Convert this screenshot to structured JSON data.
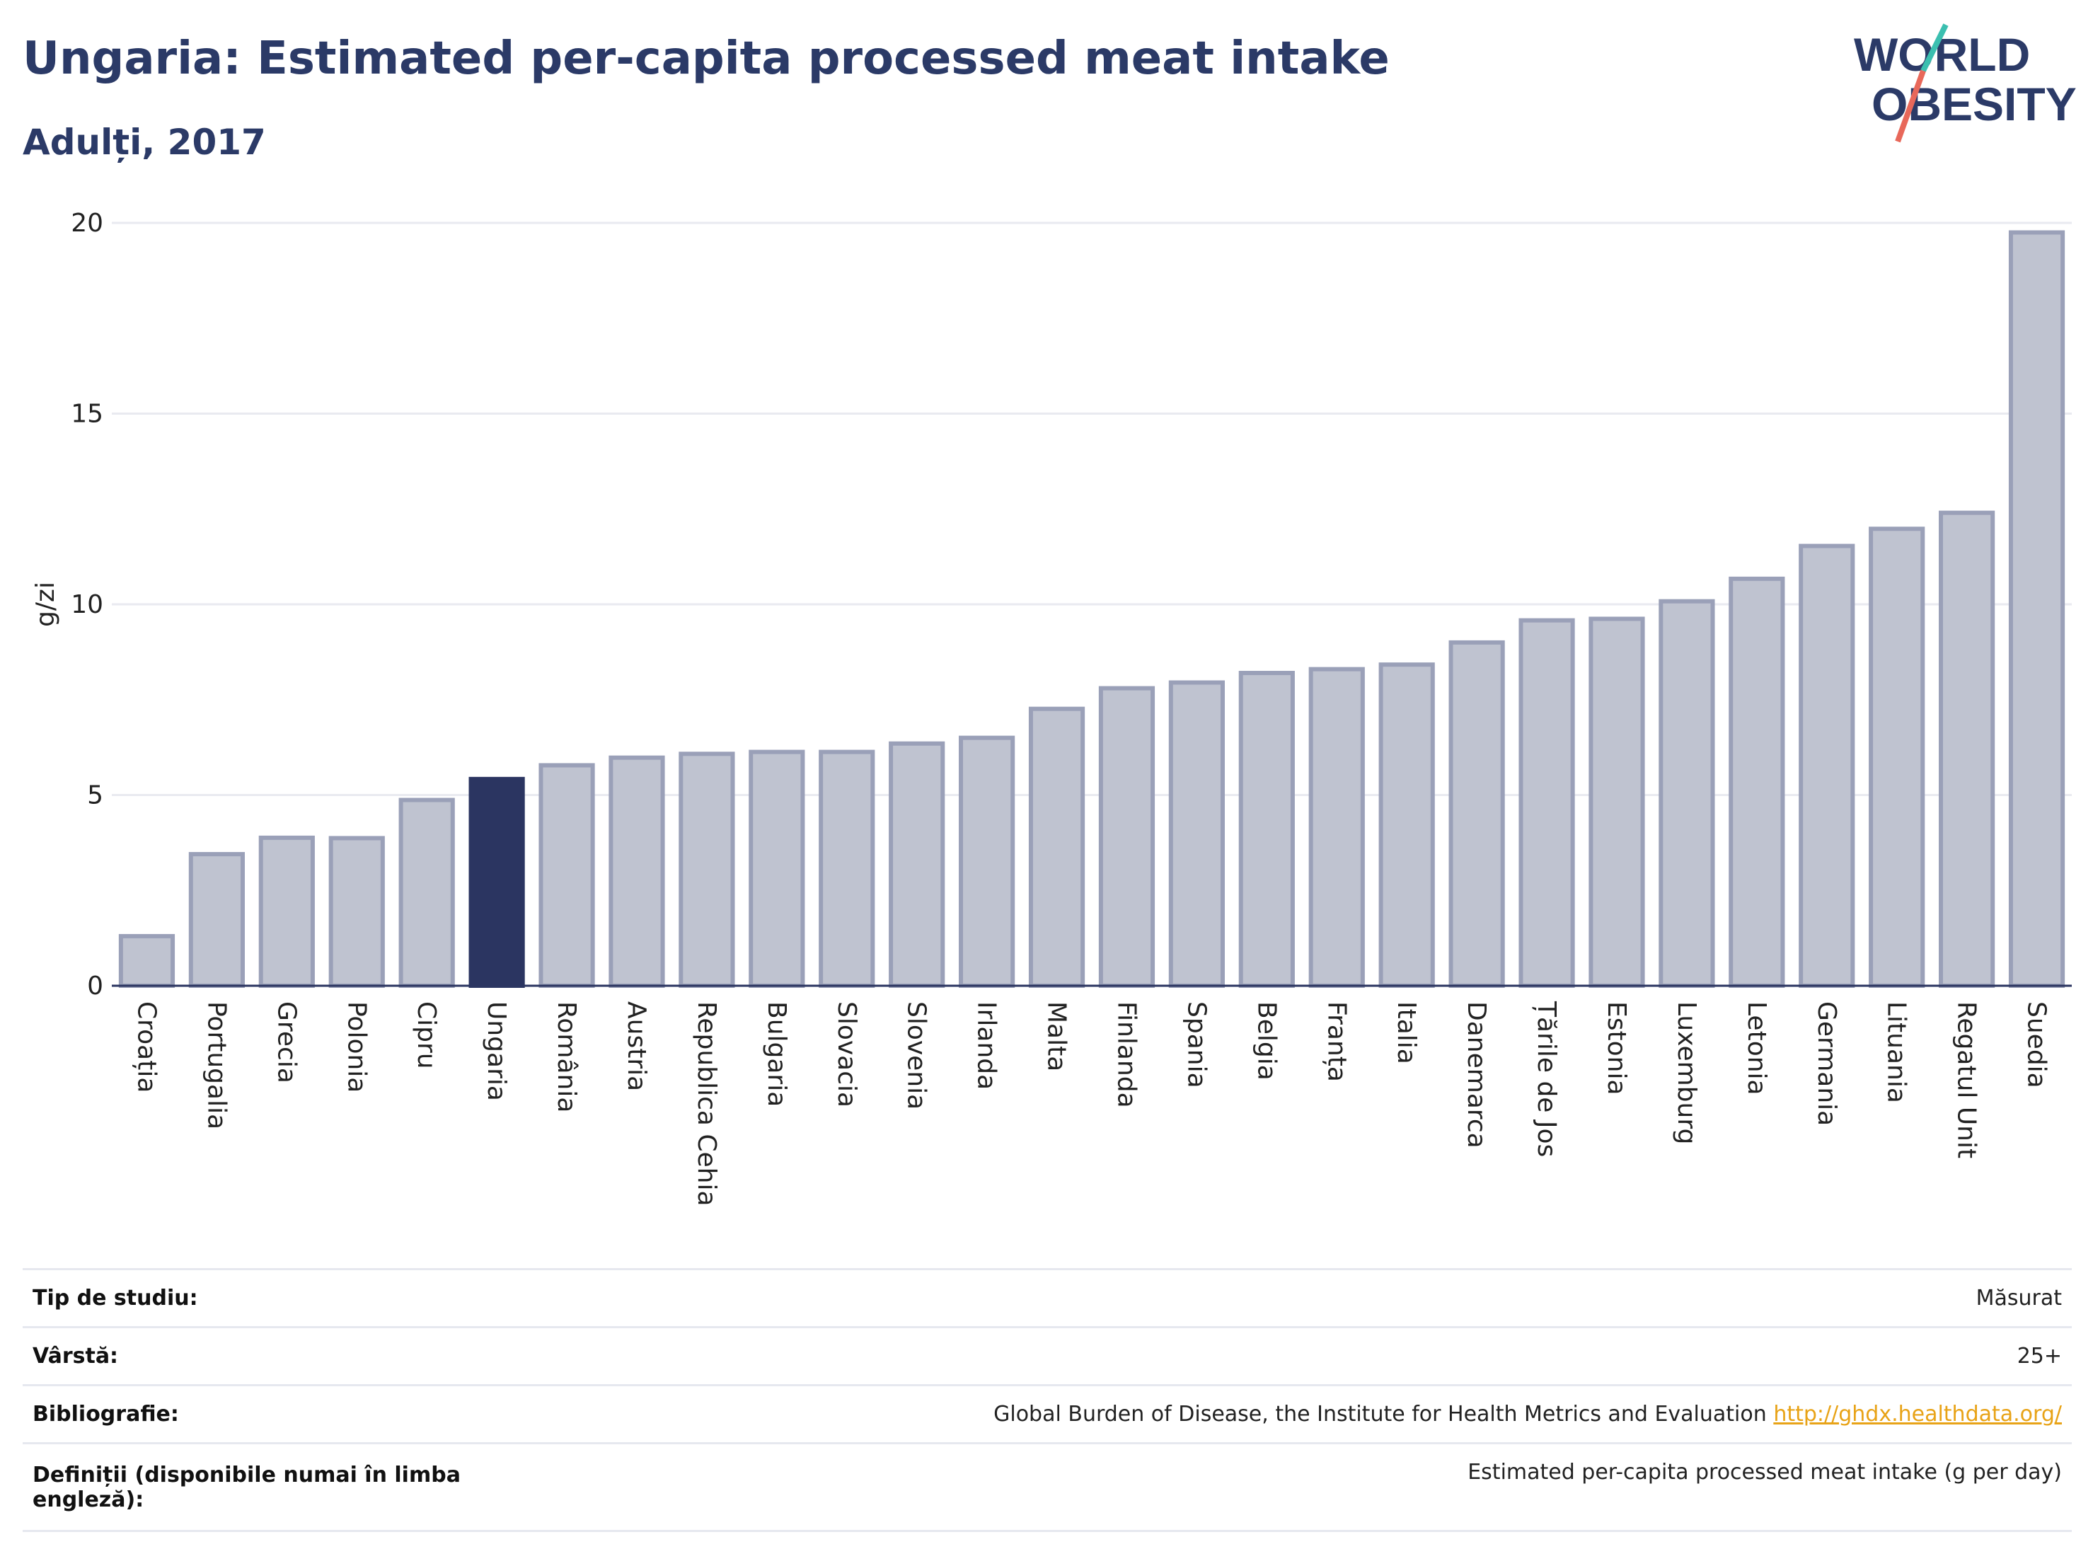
{
  "header": {
    "title": "Ungaria: Estimated per-capita processed meat intake",
    "subtitle": "Adulți, 2017",
    "logo_line1": "WORLD",
    "logo_line2": "OBESITY"
  },
  "colors": {
    "bar": "#bfc3d0",
    "bar_border": "#9aa0b8",
    "highlight": "#2b3561",
    "title": "#2b3a67",
    "grid": "#e9eaf0",
    "link": "#e8a317",
    "logo_teal": "#3bbfb0",
    "logo_red": "#e8685a"
  },
  "chart_data": {
    "type": "bar",
    "title": "Ungaria: Estimated per-capita processed meat intake",
    "subtitle": "Adulți, 2017",
    "xlabel": "",
    "ylabel": "g/zi",
    "ylim": [
      0,
      20
    ],
    "yticks": [
      0,
      5,
      10,
      15,
      20
    ],
    "grid": true,
    "highlight": "Ungaria",
    "categories": [
      "Croația",
      "Portugalia",
      "Grecia",
      "Polonia",
      "Cipru",
      "Ungaria",
      "România",
      "Austria",
      "Republica Cehia",
      "Bulgaria",
      "Slovacia",
      "Slovenia",
      "Irlanda",
      "Malta",
      "Finlanda",
      "Spania",
      "Belgia",
      "Franța",
      "Italia",
      "Danemarca",
      "Țările de Jos",
      "Estonia",
      "Luxemburg",
      "Letonia",
      "Germania",
      "Lituania",
      "Regatul Unit",
      "Suedia"
    ],
    "values": [
      1.3,
      3.45,
      3.88,
      3.87,
      4.87,
      5.42,
      5.78,
      5.98,
      6.08,
      6.13,
      6.13,
      6.35,
      6.5,
      7.26,
      7.8,
      7.95,
      8.2,
      8.3,
      8.42,
      9.0,
      9.58,
      9.62,
      10.08,
      10.67,
      11.53,
      11.98,
      12.4,
      19.75
    ]
  },
  "meta": {
    "rows": [
      {
        "label": "Tip de studiu:",
        "value": "Măsurat"
      },
      {
        "label": "Vârstă:",
        "value": "25+"
      },
      {
        "label": "Bibliografie:",
        "value": "Global Burden of Disease, the Institute for Health Metrics and Evaluation",
        "link": "http://ghdx.healthdata.org/"
      },
      {
        "label": "Definiții (disponibile numai în limba engleză):",
        "value": "Estimated per-capita processed meat intake (g per day)"
      }
    ]
  }
}
